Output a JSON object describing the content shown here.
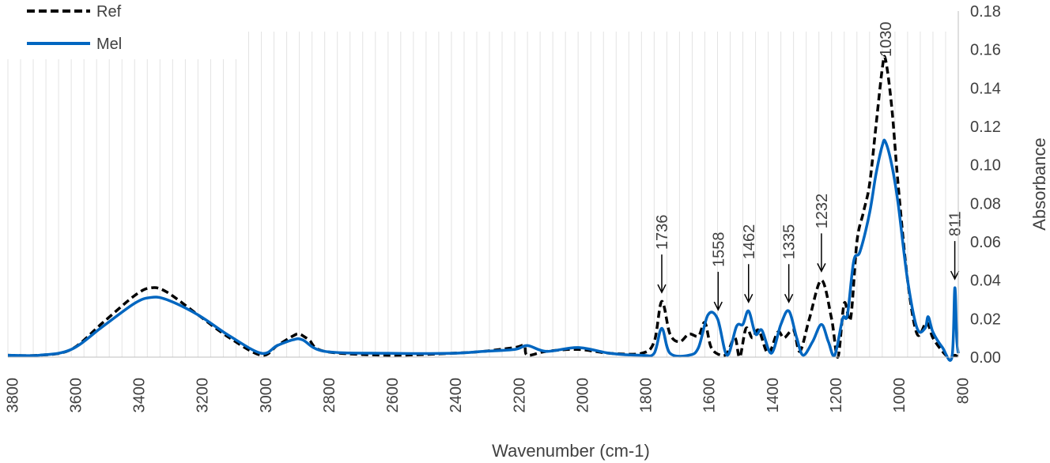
{
  "chart_data": {
    "type": "line",
    "title": "",
    "xlabel": "Wavenumber  (cm-1)",
    "ylabel": "Absorbance",
    "xlim": [
      3800,
      800
    ],
    "ylim": [
      0,
      0.18
    ],
    "x_reversed": true,
    "xticks": [
      "3800",
      "3600",
      "3400",
      "3200",
      "3000",
      "2800",
      "2600",
      "2400",
      "2200",
      "2000",
      "1800",
      "1600",
      "1400",
      "1200",
      "1000",
      "800"
    ],
    "xtick_values": [
      3800,
      3600,
      3400,
      3200,
      3000,
      2800,
      2600,
      2400,
      2200,
      2000,
      1800,
      1600,
      1400,
      1200,
      1000,
      800
    ],
    "yticks": [
      "0.00",
      "0.02",
      "0.04",
      "0.06",
      "0.08",
      "0.10",
      "0.12",
      "0.14",
      "0.16",
      "0.18"
    ],
    "ytick_values": [
      0,
      0.02,
      0.04,
      0.06,
      0.08,
      0.1,
      0.12,
      0.14,
      0.16,
      0.18
    ],
    "grid": "vertical",
    "legend_position": "top-left",
    "series": [
      {
        "name": "Ref",
        "color": "#000000",
        "style": "dashed",
        "points": [
          [
            3800,
            0.001
          ],
          [
            3700,
            0.001
          ],
          [
            3600,
            0.004
          ],
          [
            3500,
            0.018
          ],
          [
            3400,
            0.032
          ],
          [
            3350,
            0.036
          ],
          [
            3300,
            0.034
          ],
          [
            3200,
            0.022
          ],
          [
            3100,
            0.01
          ],
          [
            3000,
            0.001
          ],
          [
            2950,
            0.006
          ],
          [
            2900,
            0.011
          ],
          [
            2880,
            0.012
          ],
          [
            2850,
            0.009
          ],
          [
            2800,
            0.003
          ],
          [
            2600,
            0.001
          ],
          [
            2400,
            0.002
          ],
          [
            2300,
            0.003
          ],
          [
            2200,
            0.005
          ],
          [
            2170,
            0.006
          ],
          [
            2160,
            0.001
          ],
          [
            2100,
            0.003
          ],
          [
            2000,
            0.004
          ],
          [
            1900,
            0.002
          ],
          [
            1800,
            0.002
          ],
          [
            1760,
            0.008
          ],
          [
            1736,
            0.029
          ],
          [
            1710,
            0.012
          ],
          [
            1680,
            0.008
          ],
          [
            1650,
            0.012
          ],
          [
            1620,
            0.011
          ],
          [
            1600,
            0.018
          ],
          [
            1580,
            0.005
          ],
          [
            1550,
            0.001
          ],
          [
            1530,
            0.002
          ],
          [
            1505,
            0.01
          ],
          [
            1490,
            0.0
          ],
          [
            1470,
            0.015
          ],
          [
            1450,
            0.01
          ],
          [
            1430,
            0.014
          ],
          [
            1400,
            0.002
          ],
          [
            1370,
            0.013
          ],
          [
            1350,
            0.01
          ],
          [
            1320,
            0.014
          ],
          [
            1300,
            0.003
          ],
          [
            1270,
            0.02
          ],
          [
            1232,
            0.04
          ],
          [
            1200,
            0.02
          ],
          [
            1180,
            0.0
          ],
          [
            1160,
            0.028
          ],
          [
            1140,
            0.02
          ],
          [
            1120,
            0.06
          ],
          [
            1100,
            0.075
          ],
          [
            1080,
            0.09
          ],
          [
            1060,
            0.12
          ],
          [
            1040,
            0.15
          ],
          [
            1030,
            0.155
          ],
          [
            1010,
            0.13
          ],
          [
            990,
            0.09
          ],
          [
            960,
            0.04
          ],
          [
            930,
            0.012
          ],
          [
            900,
            0.018
          ],
          [
            880,
            0.01
          ],
          [
            850,
            0.003
          ],
          [
            830,
            0.0
          ],
          [
            811,
            0.001
          ],
          [
            800,
            0.0
          ]
        ]
      },
      {
        "name": "Mel",
        "color": "#0066c0",
        "style": "solid",
        "points": [
          [
            3800,
            0.001
          ],
          [
            3700,
            0.001
          ],
          [
            3600,
            0.004
          ],
          [
            3500,
            0.016
          ],
          [
            3400,
            0.028
          ],
          [
            3350,
            0.031
          ],
          [
            3300,
            0.03
          ],
          [
            3200,
            0.022
          ],
          [
            3100,
            0.011
          ],
          [
            3000,
            0.002
          ],
          [
            2950,
            0.006
          ],
          [
            2900,
            0.009
          ],
          [
            2870,
            0.009
          ],
          [
            2800,
            0.003
          ],
          [
            2600,
            0.002
          ],
          [
            2400,
            0.002
          ],
          [
            2300,
            0.003
          ],
          [
            2200,
            0.004
          ],
          [
            2160,
            0.006
          ],
          [
            2100,
            0.003
          ],
          [
            2000,
            0.005
          ],
          [
            1900,
            0.002
          ],
          [
            1800,
            0.001
          ],
          [
            1760,
            0.002
          ],
          [
            1736,
            0.015
          ],
          [
            1710,
            0.002
          ],
          [
            1650,
            0.001
          ],
          [
            1620,
            0.005
          ],
          [
            1590,
            0.022
          ],
          [
            1560,
            0.02
          ],
          [
            1530,
            0.001
          ],
          [
            1500,
            0.016
          ],
          [
            1480,
            0.017
          ],
          [
            1462,
            0.024
          ],
          [
            1440,
            0.012
          ],
          [
            1420,
            0.014
          ],
          [
            1390,
            0.002
          ],
          [
            1360,
            0.017
          ],
          [
            1335,
            0.024
          ],
          [
            1310,
            0.01
          ],
          [
            1290,
            0.001
          ],
          [
            1260,
            0.008
          ],
          [
            1232,
            0.017
          ],
          [
            1210,
            0.008
          ],
          [
            1190,
            0.001
          ],
          [
            1165,
            0.02
          ],
          [
            1150,
            0.022
          ],
          [
            1130,
            0.05
          ],
          [
            1110,
            0.055
          ],
          [
            1080,
            0.075
          ],
          [
            1060,
            0.095
          ],
          [
            1040,
            0.11
          ],
          [
            1030,
            0.112
          ],
          [
            1010,
            0.1
          ],
          [
            990,
            0.08
          ],
          [
            960,
            0.04
          ],
          [
            930,
            0.015
          ],
          [
            905,
            0.015
          ],
          [
            895,
            0.021
          ],
          [
            880,
            0.013
          ],
          [
            850,
            0.005
          ],
          [
            820,
            0.0
          ],
          [
            811,
            0.036
          ],
          [
            805,
            0.01
          ],
          [
            800,
            0.002
          ]
        ]
      }
    ],
    "annotations": [
      {
        "label": "1736",
        "x": 1736,
        "arrow_to": 0.032
      },
      {
        "label": "1558",
        "x": 1558,
        "arrow_to": 0.023
      },
      {
        "label": "1462",
        "x": 1462,
        "arrow_to": 0.027
      },
      {
        "label": "1335",
        "x": 1335,
        "arrow_to": 0.027
      },
      {
        "label": "1232",
        "x": 1232,
        "arrow_to": 0.043
      },
      {
        "label": "1030",
        "x": 1030,
        "arrow_to": null
      },
      {
        "label": "811",
        "x": 811,
        "arrow_to": 0.039
      }
    ]
  }
}
